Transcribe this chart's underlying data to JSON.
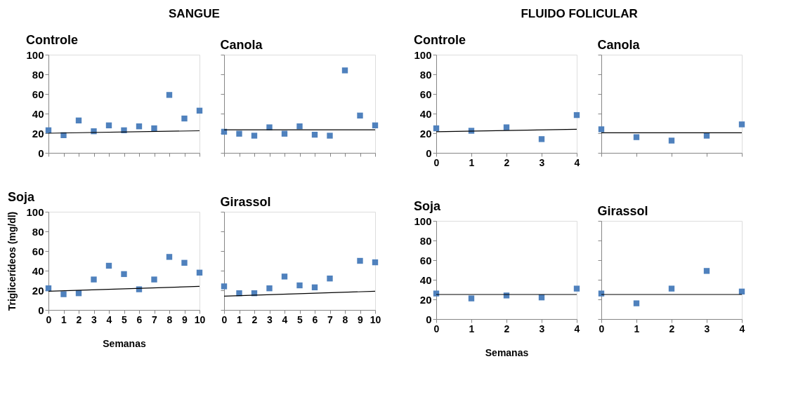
{
  "chart_data": [
    {
      "type": "scatter",
      "title": "Controle",
      "annotations": [
        "SANGUE"
      ],
      "x": [
        0,
        1,
        2,
        3,
        4,
        5,
        6,
        7,
        8,
        9,
        10
      ],
      "xlim": [
        0,
        10
      ],
      "xticks": [
        0,
        1,
        2,
        3,
        4,
        5,
        6,
        7,
        8,
        9,
        10
      ],
      "ylim": [
        0,
        100
      ],
      "yticks": [
        0,
        20,
        40,
        60,
        80,
        100
      ],
      "tick_labels": "y",
      "marker": "square",
      "series": [
        {
          "color": "#4f81bd",
          "values": [
            23,
            18,
            33,
            22,
            28,
            23,
            27,
            25,
            59,
            35,
            43
          ]
        },
        {
          "type": "line",
          "x": [
            0,
            10
          ],
          "color": "#000000",
          "marker": "none",
          "values": [
            20,
            22.5
          ]
        }
      ]
    },
    {
      "type": "scatter",
      "title": "Canola",
      "x": [
        0,
        1,
        2,
        3,
        4,
        5,
        6,
        7,
        8,
        9,
        10
      ],
      "xlim": [
        0,
        10
      ],
      "xticks": [
        0,
        1,
        2,
        3,
        4,
        5,
        6,
        7,
        8,
        9,
        10
      ],
      "ylim": [
        0,
        100
      ],
      "yticks": [
        0,
        20,
        40,
        60,
        80,
        100
      ],
      "tick_labels": false,
      "marker": "square",
      "series": [
        {
          "color": "#4f81bd",
          "values": [
            21.5,
            19.5,
            17.5,
            26,
            19.5,
            27,
            18.5,
            17.5,
            84,
            38,
            28
          ]
        },
        {
          "type": "line",
          "x": [
            0,
            10
          ],
          "color": "#000000",
          "marker": "none",
          "values": [
            23.5,
            23.5
          ]
        }
      ]
    },
    {
      "type": "scatter",
      "title": "Soja",
      "xlabel": "Semanas",
      "ylabel": "Triglicerídeos (mg/dl)",
      "x": [
        0,
        1,
        2,
        3,
        4,
        5,
        6,
        7,
        8,
        9,
        10
      ],
      "xlim": [
        0,
        10
      ],
      "xticks": [
        0,
        1,
        2,
        3,
        4,
        5,
        6,
        7,
        8,
        9,
        10
      ],
      "ylim": [
        0,
        100
      ],
      "yticks": [
        0,
        20,
        40,
        60,
        80,
        100
      ],
      "marker": "square",
      "series": [
        {
          "color": "#4f81bd",
          "values": [
            22,
            16,
            17,
            31,
            45,
            36.5,
            21,
            31,
            54,
            48,
            38
          ]
        },
        {
          "type": "line",
          "x": [
            0,
            10
          ],
          "color": "#000000",
          "marker": "none",
          "values": [
            19,
            24
          ]
        }
      ]
    },
    {
      "type": "scatter",
      "title": "Girassol",
      "x": [
        0,
        1,
        2,
        3,
        4,
        5,
        6,
        7,
        8,
        9,
        10
      ],
      "xlim": [
        0,
        10
      ],
      "xticks": [
        0,
        1,
        2,
        3,
        4,
        5,
        6,
        7,
        8,
        9,
        10
      ],
      "ylim": [
        0,
        100
      ],
      "yticks": [
        0,
        20,
        40,
        60,
        80,
        100
      ],
      "tick_labels": "x",
      "marker": "square",
      "series": [
        {
          "color": "#4f81bd",
          "values": [
            24,
            17,
            17,
            22,
            34,
            25,
            23,
            32,
            null,
            50,
            48.5
          ]
        },
        {
          "type": "line",
          "x": [
            0,
            10
          ],
          "color": "#000000",
          "marker": "none",
          "values": [
            14,
            19
          ]
        }
      ]
    },
    {
      "type": "scatter",
      "title": "Controle",
      "annotations": [
        "FLUIDO FOLICULAR"
      ],
      "x": [
        0,
        1,
        2,
        3,
        4
      ],
      "xlim": [
        0,
        4
      ],
      "xticks": [
        0,
        1,
        2,
        3,
        4
      ],
      "ylim": [
        0,
        100
      ],
      "yticks": [
        0,
        20,
        40,
        60,
        80,
        100
      ],
      "marker": "square",
      "series": [
        {
          "color": "#4f81bd",
          "values": [
            25,
            22.5,
            26,
            14,
            38.5
          ]
        },
        {
          "type": "line",
          "x": [
            0,
            4
          ],
          "color": "#000000",
          "marker": "none",
          "values": [
            21.5,
            24
          ]
        }
      ]
    },
    {
      "type": "scatter",
      "title": "Canola",
      "x": [
        0,
        1,
        2,
        3,
        4
      ],
      "xlim": [
        0,
        4
      ],
      "xticks": [
        0,
        1,
        2,
        3,
        4
      ],
      "ylim": [
        0,
        100
      ],
      "yticks": [
        0,
        20,
        40,
        60,
        80,
        100
      ],
      "tick_labels": false,
      "marker": "square",
      "series": [
        {
          "color": "#4f81bd",
          "values": [
            24,
            16,
            12.5,
            17.5,
            29
          ]
        },
        {
          "type": "line",
          "x": [
            0,
            4
          ],
          "color": "#000000",
          "marker": "none",
          "values": [
            20.5,
            20.5
          ]
        }
      ]
    },
    {
      "type": "scatter",
      "title": "Soja",
      "xlabel": "Semanas",
      "x": [
        0,
        1,
        2,
        3,
        4
      ],
      "xlim": [
        0,
        4
      ],
      "xticks": [
        0,
        1,
        2,
        3,
        4
      ],
      "ylim": [
        0,
        100
      ],
      "yticks": [
        0,
        20,
        40,
        60,
        80,
        100
      ],
      "marker": "square",
      "series": [
        {
          "color": "#4f81bd",
          "values": [
            26,
            21,
            24,
            22,
            31
          ]
        },
        {
          "type": "line",
          "x": [
            0,
            4
          ],
          "color": "#000000",
          "marker": "none",
          "values": [
            25,
            25
          ]
        }
      ]
    },
    {
      "type": "scatter",
      "title": "Girassol",
      "x": [
        0,
        1,
        2,
        3,
        4
      ],
      "xlim": [
        0,
        4
      ],
      "xticks": [
        0,
        1,
        2,
        3,
        4
      ],
      "ylim": [
        0,
        100
      ],
      "yticks": [
        0,
        20,
        40,
        60,
        80,
        100
      ],
      "tick_labels": "x",
      "marker": "square",
      "series": [
        {
          "color": "#4f81bd",
          "values": [
            26,
            16,
            31,
            49,
            28
          ]
        },
        {
          "type": "line",
          "x": [
            0,
            4
          ],
          "color": "#000000",
          "marker": "none",
          "values": [
            25,
            25
          ]
        }
      ]
    }
  ]
}
